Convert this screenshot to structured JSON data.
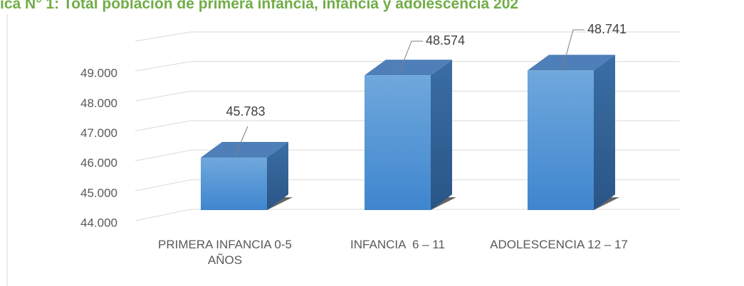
{
  "chart_data": {
    "type": "bar3d",
    "title": "ica N° 1: Total población de primera infancia, infancia y adolescencia 202",
    "categories": [
      "PRIMERA INFANCIA 0-5 AÑOS",
      "INFANCIA  6 – 11",
      "ADOLESCENCIA 12 – 17"
    ],
    "values": [
      45783,
      48574,
      48741
    ],
    "value_labels": [
      "45.783",
      "48.574",
      "48.741"
    ],
    "color": "#5b9bd5",
    "ylim": [
      44000,
      50000
    ],
    "yticks": [
      {
        "value": 44000,
        "label": "44.000"
      },
      {
        "value": 45000,
        "label": "45.000"
      },
      {
        "value": 46000,
        "label": "46.000"
      },
      {
        "value": 47000,
        "label": "47.000"
      },
      {
        "value": 48000,
        "label": "48.000"
      },
      {
        "value": 49000,
        "label": "49.000"
      }
    ],
    "grid": true
  }
}
